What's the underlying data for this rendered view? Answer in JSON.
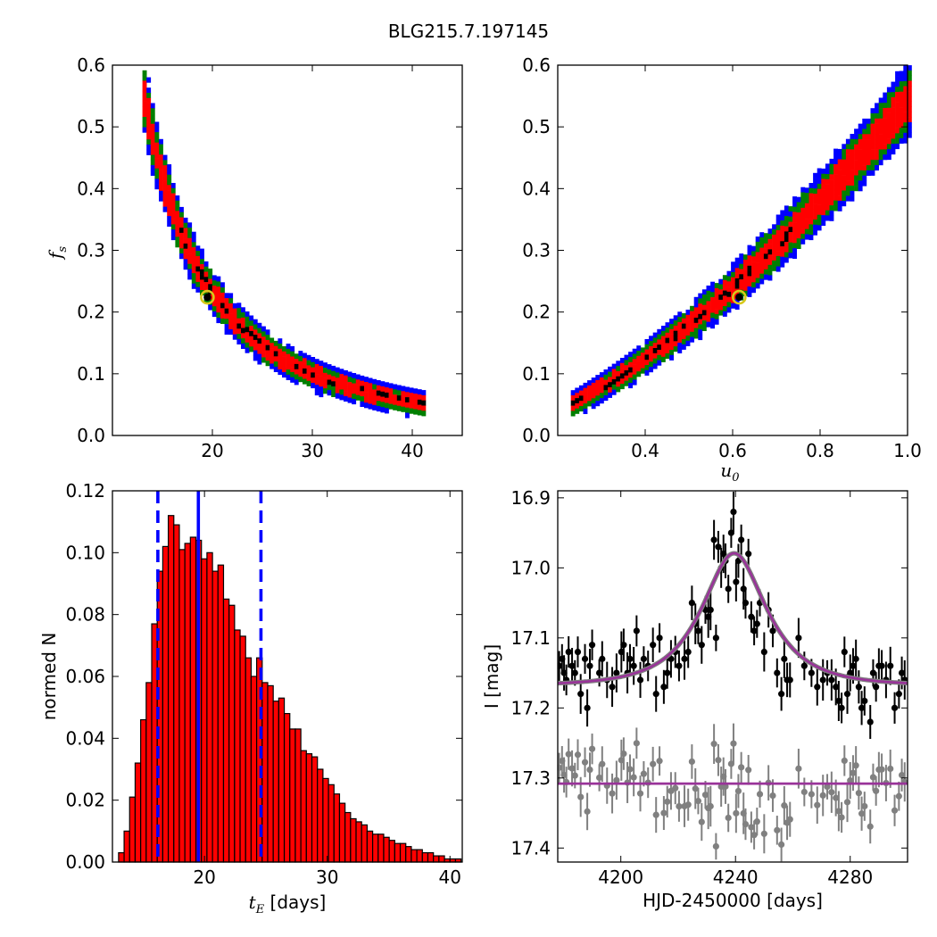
{
  "figure": {
    "suptitle": "BLG215.7.197145"
  },
  "colors": {
    "blue": "#0000ff",
    "green": "#007f00",
    "red": "#ff0000",
    "black": "#000000",
    "best_marker": "#d8c81a",
    "model_line": "#993399",
    "model_line_under": "#7f7f7f",
    "residuals": "#808080",
    "bar_fill": "#ff0000",
    "vline": "#0000ff"
  },
  "chart_data": [
    {
      "type": "heatmap",
      "panel": "top-left",
      "xlabel": "",
      "ylabel": "f_s",
      "xlim": [
        10,
        45
      ],
      "ylim": [
        0,
        0.6
      ],
      "xticks": [
        20,
        30,
        40
      ],
      "yticks": [
        0.0,
        0.1,
        0.2,
        0.3,
        0.4,
        0.5,
        0.6
      ],
      "ytick_labels": [
        "0.0",
        "0.1",
        "0.2",
        "0.3",
        "0.4",
        "0.5",
        "0.6"
      ],
      "xtick_labels": [
        "20",
        "30",
        "40"
      ],
      "curve": {
        "form": "tE_fs",
        "tE_min": 13.0,
        "tE_max": 41.0,
        "fs_at_min": 0.55,
        "fs_at_max": 0.055
      },
      "best": {
        "x": 19.5,
        "y": 0.224
      },
      "band_levels": [
        "blue",
        "green",
        "red",
        "black"
      ]
    },
    {
      "type": "heatmap",
      "panel": "top-right",
      "xlabel": "u_0",
      "ylabel": "",
      "xlim": [
        0.2,
        1.0
      ],
      "ylim": [
        0,
        0.6
      ],
      "xticks": [
        0.4,
        0.6,
        0.8,
        1.0
      ],
      "xtick_labels": [
        "0.4",
        "0.6",
        "0.8",
        "1.0"
      ],
      "yticks": [
        0.0,
        0.1,
        0.2,
        0.3,
        0.4,
        0.5,
        0.6
      ],
      "ytick_labels": [
        "0.0",
        "0.1",
        "0.2",
        "0.3",
        "0.4",
        "0.5",
        "0.6"
      ],
      "curve": {
        "form": "u0_fs",
        "u0_min": 0.23,
        "u0_max": 1.0,
        "fs_at_min": 0.055,
        "fs_at_max": 0.55
      },
      "best": {
        "x": 0.615,
        "y": 0.224
      },
      "band_levels": [
        "blue",
        "green",
        "red",
        "black"
      ]
    },
    {
      "type": "bar",
      "panel": "bottom-left",
      "xlabel_main": "t_E",
      "xlabel_unit": " [days]",
      "ylabel": "normed N",
      "xlim": [
        12.5,
        41
      ],
      "ylim": [
        0,
        0.12
      ],
      "xticks": [
        20,
        30,
        40
      ],
      "xtick_labels": [
        "20",
        "30",
        "40"
      ],
      "yticks": [
        0.0,
        0.02,
        0.04,
        0.06,
        0.08,
        0.1,
        0.12
      ],
      "ytick_labels": [
        "0.00",
        "0.02",
        "0.04",
        "0.06",
        "0.08",
        "0.10",
        "0.12"
      ],
      "bin_start": 13.0,
      "bin_width": 0.45,
      "values": [
        0.003,
        0.01,
        0.021,
        0.032,
        0.046,
        0.058,
        0.077,
        0.094,
        0.102,
        0.112,
        0.109,
        0.101,
        0.103,
        0.105,
        0.104,
        0.098,
        0.1,
        0.094,
        0.096,
        0.085,
        0.083,
        0.075,
        0.073,
        0.066,
        0.06,
        0.066,
        0.058,
        0.057,
        0.052,
        0.053,
        0.048,
        0.043,
        0.043,
        0.036,
        0.035,
        0.034,
        0.03,
        0.027,
        0.025,
        0.022,
        0.019,
        0.016,
        0.014,
        0.013,
        0.012,
        0.01,
        0.009,
        0.009,
        0.008,
        0.007,
        0.006,
        0.006,
        0.005,
        0.004,
        0.004,
        0.003,
        0.003,
        0.002,
        0.002,
        0.001,
        0.001,
        0.001
      ],
      "vlines": [
        {
          "x": 19.5,
          "style": "solid"
        },
        {
          "x": 16.2,
          "style": "dashed"
        },
        {
          "x": 24.6,
          "style": "dashed"
        }
      ]
    },
    {
      "type": "scatter",
      "panel": "bottom-right",
      "xlabel": "HJD-2450000 [days]",
      "ylabel": "I [mag]",
      "xlim": [
        4178,
        4300
      ],
      "ylim": [
        17.42,
        16.89
      ],
      "xticks": [
        4200,
        4240,
        4280
      ],
      "xtick_labels": [
        "4200",
        "4240",
        "4280"
      ],
      "yticks": [
        16.9,
        17.0,
        17.1,
        17.2,
        17.3,
        17.4
      ],
      "ytick_labels": [
        "16.9",
        "17.0",
        "17.1",
        "17.2",
        "17.3",
        "17.4"
      ],
      "model": {
        "t0": 4239.5,
        "tE": 19.5,
        "u0": 0.615,
        "fs": 0.224,
        "baseline": 17.168
      },
      "residual_offset": 17.31,
      "residual_line": 17.308,
      "series": [
        {
          "name": "",
          "kind": "data",
          "x": [
            4178.5,
            4179.5,
            4180.2,
            4181.0,
            4181.8,
            4183.0,
            4184.0,
            4185.0,
            4186.0,
            4187.5,
            4188.3,
            4189.2,
            4190.0,
            4192.5,
            4193.5,
            4195.2,
            4197.0,
            4198.5,
            4200.2,
            4201.0,
            4202.3,
            4203.2,
            4204.5,
            4205.5,
            4206.8,
            4208.0,
            4209.5,
            4211.2,
            4212.3,
            4213.5,
            4215.0,
            4216.2,
            4217.5,
            4219.0,
            4220.3,
            4222.2,
            4223.5,
            4224.8,
            4226.0,
            4227.0,
            4228.2,
            4229.5,
            4230.5,
            4231.3,
            4232.5,
            4233.2,
            4234.0,
            4235.0,
            4235.8,
            4236.5,
            4237.5,
            4238.5,
            4239.3,
            4240.2,
            4241.0,
            4242.0,
            4242.8,
            4243.5,
            4244.5,
            4245.5,
            4246.5,
            4247.5,
            4248.5,
            4250.0,
            4251.5,
            4253.0,
            4254.5,
            4256.0,
            4257.0,
            4258.0,
            4259.0,
            4262.0,
            4264.0,
            4266.5,
            4268.5,
            4270.5,
            4272.0,
            4273.5,
            4275.0,
            4276.0,
            4277.0,
            4278.0,
            4279.0,
            4280.0,
            4281.0,
            4282.0,
            4283.0,
            4284.0,
            4285.0,
            4287.0,
            4288.0,
            4289.0,
            4290.0,
            4291.0,
            4292.5,
            4294.0,
            4295.5,
            4297.0,
            4298.0,
            4299.0
          ],
          "y": [
            17.14,
            17.13,
            17.15,
            17.16,
            17.12,
            17.14,
            17.15,
            17.12,
            17.18,
            17.13,
            17.2,
            17.14,
            17.11,
            17.15,
            17.13,
            17.16,
            17.17,
            17.15,
            17.12,
            17.11,
            17.15,
            17.13,
            17.14,
            17.09,
            17.16,
            17.13,
            17.14,
            17.11,
            17.18,
            17.1,
            17.17,
            17.15,
            17.13,
            17.12,
            17.14,
            17.13,
            17.12,
            17.05,
            17.08,
            17.09,
            17.11,
            17.06,
            17.07,
            17.06,
            16.96,
            17.1,
            16.97,
            17.0,
            16.98,
            16.99,
            17.03,
            16.95,
            16.92,
            17.02,
            16.99,
            16.96,
            17.03,
            17.05,
            16.98,
            17.07,
            17.09,
            17.08,
            17.05,
            17.12,
            17.06,
            17.09,
            17.15,
            17.18,
            17.13,
            17.16,
            17.16,
            17.1,
            17.14,
            17.15,
            17.17,
            17.16,
            17.15,
            17.16,
            17.17,
            17.19,
            17.2,
            17.12,
            17.18,
            17.15,
            17.14,
            17.13,
            17.17,
            17.2,
            17.19,
            17.22,
            17.15,
            17.17,
            17.14,
            17.14,
            17.16,
            17.14,
            17.2,
            17.18,
            17.15,
            17.16
          ]
        }
      ]
    }
  ]
}
